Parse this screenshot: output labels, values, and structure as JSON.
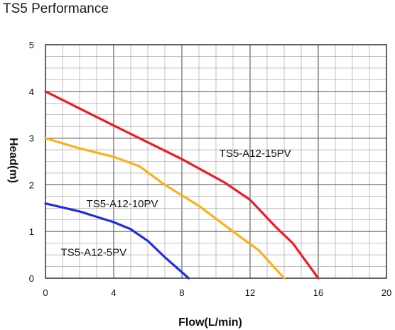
{
  "chart_data": {
    "type": "line",
    "title": "TS5 Performance",
    "xlabel": "Flow(L/min)",
    "ylabel": "Head(m)",
    "xlim": [
      0,
      20
    ],
    "ylim": [
      0,
      5
    ],
    "x_ticks": [
      0,
      4,
      8,
      12,
      16,
      20
    ],
    "y_ticks": [
      0,
      1,
      2,
      3,
      4,
      5
    ],
    "grid": true,
    "series": [
      {
        "name": "TS5-A12-15PV",
        "color": "#ee1c24",
        "points": [
          [
            0,
            4.0
          ],
          [
            4,
            3.27
          ],
          [
            8,
            2.55
          ],
          [
            10.5,
            2.05
          ],
          [
            12,
            1.68
          ],
          [
            13.5,
            1.1
          ],
          [
            14.5,
            0.75
          ],
          [
            16,
            0
          ]
        ]
      },
      {
        "name": "TS5-A12-10PV",
        "color": "#fbb117",
        "points": [
          [
            0,
            3.0
          ],
          [
            2,
            2.78
          ],
          [
            4,
            2.6
          ],
          [
            5.5,
            2.4
          ],
          [
            7,
            2.0
          ],
          [
            9,
            1.55
          ],
          [
            11,
            1.0
          ],
          [
            12.5,
            0.6
          ],
          [
            14,
            0
          ]
        ]
      },
      {
        "name": "TS5-A12-5PV",
        "color": "#1e2de5",
        "points": [
          [
            0,
            1.6
          ],
          [
            2,
            1.43
          ],
          [
            4,
            1.2
          ],
          [
            5,
            1.05
          ],
          [
            6,
            0.8
          ],
          [
            7,
            0.45
          ],
          [
            8.4,
            0
          ]
        ]
      }
    ]
  }
}
